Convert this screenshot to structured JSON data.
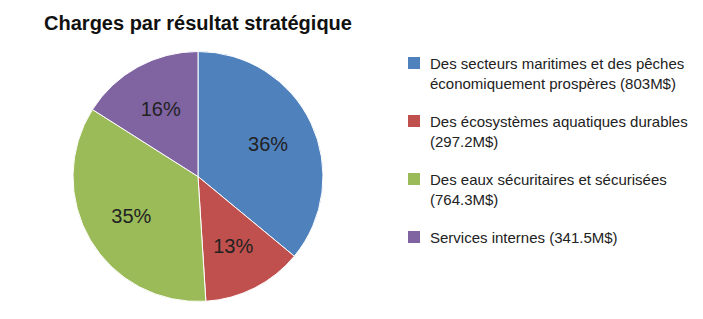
{
  "chart_data": {
    "type": "pie",
    "title": "Charges par résultat stratégique",
    "categories": [
      "Des secteurs maritimes et des pêches économiquement prospères (803M$)",
      "Des écosystèmes aquatiques durables (297.2M$)",
      "Des eaux sécuritaires et sécurisées (764.3M$)",
      "Services internes (341.5M$)"
    ],
    "values": [
      36,
      13,
      35,
      16
    ],
    "value_labels": [
      "36%",
      "13%",
      "35%",
      "16%"
    ],
    "colors": [
      "#4f81bd",
      "#c0504d",
      "#9bbb59",
      "#8064a2"
    ],
    "data_labels": true,
    "legend": "right"
  }
}
